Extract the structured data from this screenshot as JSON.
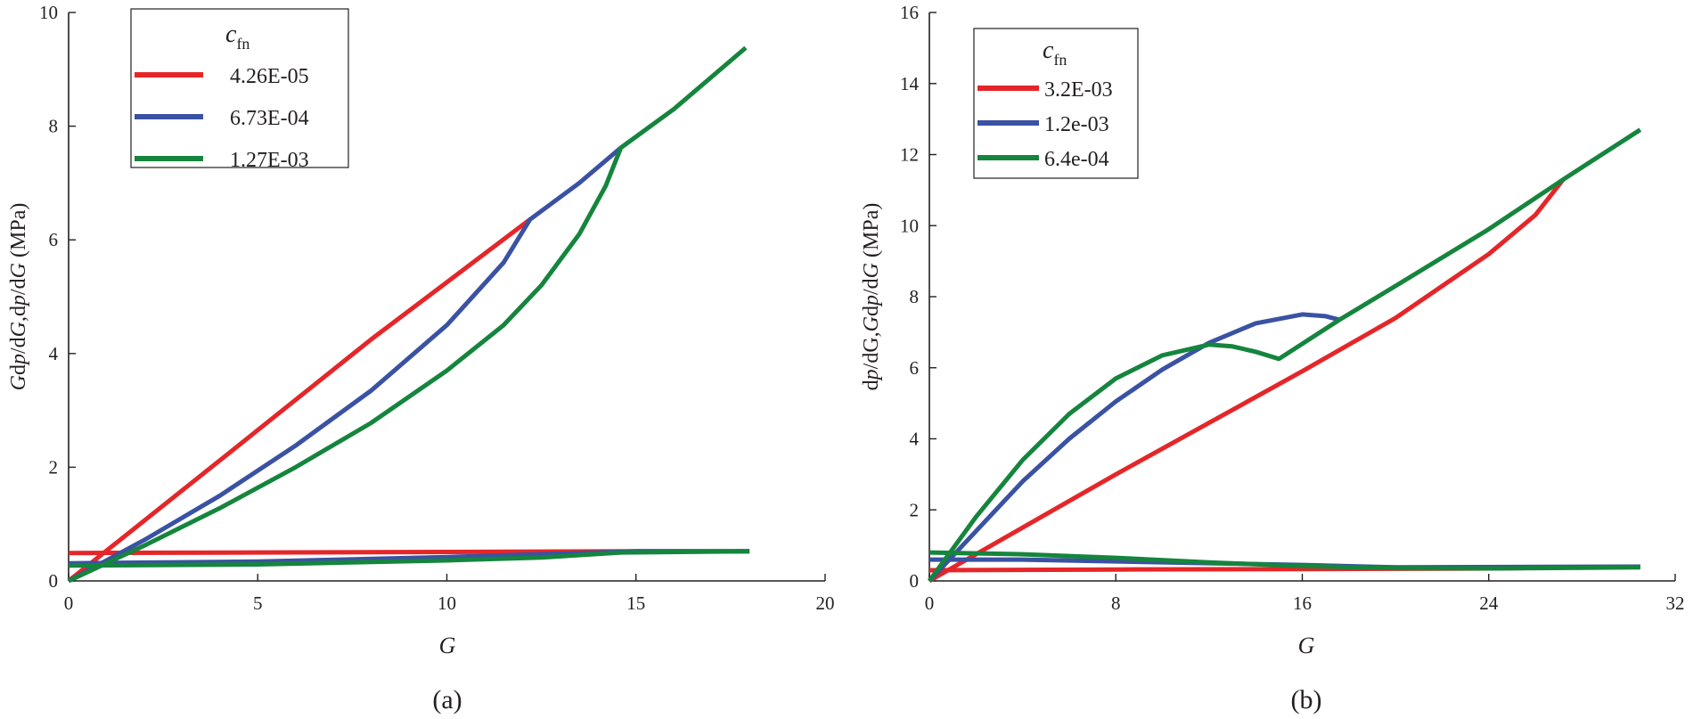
{
  "colors": {
    "red": "#e52629",
    "blue": "#3a52a3",
    "green": "#15853d",
    "axis": "#231f20"
  },
  "chart_data": [
    {
      "type": "line",
      "panel_label": "(a)",
      "xlabel": "G",
      "ylabel_parts": [
        {
          "t": "G",
          "i": true
        },
        {
          "t": "d",
          "i": false
        },
        {
          "t": "p",
          "i": true
        },
        {
          "t": "/d",
          "i": false
        },
        {
          "t": "G",
          "i": true
        },
        {
          "t": ",d",
          "i": false
        },
        {
          "t": "p",
          "i": true
        },
        {
          "t": "/d",
          "i": false
        },
        {
          "t": "G",
          "i": true
        },
        {
          "t": " (MPa)",
          "i": false
        }
      ],
      "xlim": [
        0,
        20
      ],
      "ylim": [
        0,
        10
      ],
      "xticks": [
        0,
        5,
        10,
        15,
        20
      ],
      "yticks": [
        0,
        2,
        4,
        6,
        8,
        10
      ],
      "legend": {
        "title_main": "c",
        "title_sub": "fn",
        "placement": "top-left"
      },
      "series": [
        {
          "name": "4.26E-05",
          "color": "red",
          "curves": [
            [
              [
                0,
                0
              ],
              [
                4,
                2.12
              ],
              [
                8,
                4.25
              ],
              [
                12.2,
                6.36
              ]
            ],
            [
              [
                0,
                0.49
              ],
              [
                5,
                0.5
              ],
              [
                10,
                0.51
              ],
              [
                15,
                0.52
              ],
              [
                18,
                0.52
              ]
            ]
          ]
        },
        {
          "name": "6.73E-04",
          "color": "blue",
          "curves": [
            [
              [
                0,
                0
              ],
              [
                2,
                0.72
              ],
              [
                4,
                1.5
              ],
              [
                6,
                2.38
              ],
              [
                8,
                3.35
              ],
              [
                10,
                4.5
              ],
              [
                11.5,
                5.6
              ],
              [
                12.2,
                6.36
              ],
              [
                13.5,
                7.0
              ],
              [
                14.6,
                7.62
              ]
            ],
            [
              [
                0,
                0.31
              ],
              [
                5,
                0.34
              ],
              [
                10,
                0.42
              ],
              [
                13,
                0.48
              ],
              [
                15,
                0.52
              ],
              [
                18,
                0.52
              ]
            ]
          ]
        },
        {
          "name": "1.27E-03",
          "color": "green",
          "curves": [
            [
              [
                0,
                0
              ],
              [
                2,
                0.62
              ],
              [
                4,
                1.28
              ],
              [
                6,
                2.0
              ],
              [
                8,
                2.78
              ],
              [
                10,
                3.7
              ],
              [
                11.5,
                4.5
              ],
              [
                12.5,
                5.2
              ],
              [
                13.5,
                6.1
              ],
              [
                14.2,
                6.95
              ],
              [
                14.6,
                7.62
              ],
              [
                16,
                8.3
              ],
              [
                17.9,
                9.38
              ]
            ],
            [
              [
                0,
                0.27
              ],
              [
                5,
                0.29
              ],
              [
                10,
                0.36
              ],
              [
                12.5,
                0.41
              ],
              [
                14.6,
                0.5
              ],
              [
                18,
                0.52
              ]
            ]
          ]
        }
      ]
    },
    {
      "type": "line",
      "panel_label": "(b)",
      "xlabel": "G",
      "ylabel_parts": [
        {
          "t": "d",
          "i": false
        },
        {
          "t": "p",
          "i": true
        },
        {
          "t": "/dG,",
          "i": false
        },
        {
          "t": "G",
          "i": true
        },
        {
          "t": "d",
          "i": false
        },
        {
          "t": "p",
          "i": true
        },
        {
          "t": "/d",
          "i": false
        },
        {
          "t": "G",
          "i": true
        },
        {
          "t": " (MPa)",
          "i": false
        }
      ],
      "xlim": [
        0,
        32
      ],
      "ylim": [
        0,
        16
      ],
      "xticks": [
        0,
        8,
        16,
        24,
        32
      ],
      "yticks": [
        0,
        2,
        4,
        6,
        8,
        10,
        12,
        14,
        16
      ],
      "legend": {
        "title_main": "c",
        "title_sub": "fn",
        "placement": "top-left"
      },
      "series": [
        {
          "name": "3.2E-03",
          "color": "red",
          "curves": [
            [
              [
                0,
                0
              ],
              [
                4,
                1.5
              ],
              [
                8,
                3.0
              ],
              [
                12,
                4.45
              ],
              [
                16,
                5.9
              ],
              [
                20,
                7.4
              ],
              [
                24,
                9.2
              ],
              [
                26,
                10.3
              ],
              [
                27.2,
                11.3
              ]
            ],
            [
              [
                0,
                0.3
              ],
              [
                8,
                0.32
              ],
              [
                16,
                0.33
              ],
              [
                24,
                0.35
              ],
              [
                30.5,
                0.4
              ]
            ]
          ]
        },
        {
          "name": "1.2e-03",
          "color": "blue",
          "curves": [
            [
              [
                0,
                0
              ],
              [
                2,
                1.4
              ],
              [
                4,
                2.8
              ],
              [
                6,
                4.0
              ],
              [
                8,
                5.05
              ],
              [
                10,
                5.95
              ],
              [
                12,
                6.7
              ],
              [
                14,
                7.25
              ],
              [
                16,
                7.5
              ],
              [
                17,
                7.45
              ],
              [
                17.6,
                7.35
              ]
            ],
            [
              [
                0,
                0.6
              ],
              [
                4,
                0.6
              ],
              [
                8,
                0.55
              ],
              [
                12,
                0.5
              ],
              [
                16,
                0.45
              ],
              [
                20,
                0.38
              ],
              [
                30.5,
                0.4
              ]
            ]
          ]
        },
        {
          "name": "6.4e-04",
          "color": "green",
          "curves": [
            [
              [
                0,
                0
              ],
              [
                1,
                0.9
              ],
              [
                2,
                1.8
              ],
              [
                4,
                3.4
              ],
              [
                6,
                4.7
              ],
              [
                8,
                5.7
              ],
              [
                10,
                6.35
              ],
              [
                12,
                6.65
              ],
              [
                13,
                6.6
              ],
              [
                14,
                6.45
              ],
              [
                15,
                6.25
              ],
              [
                17.6,
                7.35
              ],
              [
                20,
                8.3
              ],
              [
                24,
                9.9
              ],
              [
                27.2,
                11.3
              ],
              [
                30.5,
                12.7
              ]
            ],
            [
              [
                0,
                0.8
              ],
              [
                4,
                0.75
              ],
              [
                8,
                0.65
              ],
              [
                12,
                0.52
              ],
              [
                16,
                0.42
              ],
              [
                20,
                0.36
              ],
              [
                24,
                0.35
              ],
              [
                30.5,
                0.38
              ]
            ]
          ]
        }
      ]
    }
  ]
}
